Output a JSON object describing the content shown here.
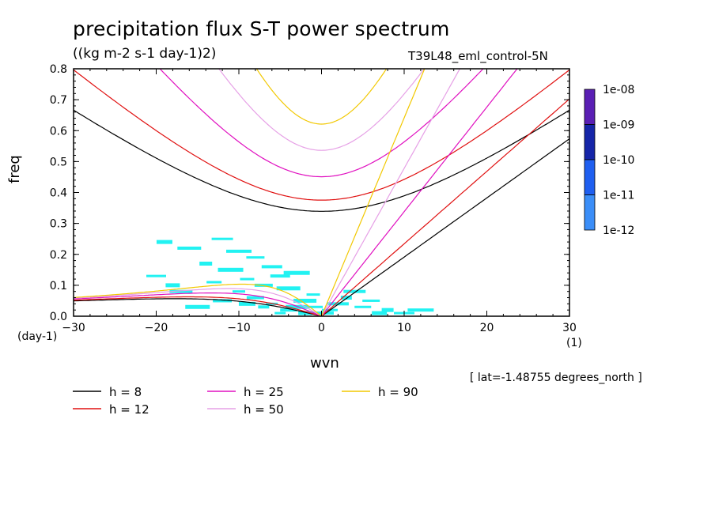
{
  "chart_data": {
    "type": "line",
    "title": "precipitation flux S-T power spectrum",
    "units": "((kg m-2 s-1 day-1)2)",
    "dataset": "T39L48_eml_control-5N",
    "xlabel": "wvn",
    "ylabel": "freq",
    "x_units": "(1)",
    "y_units": "(day-1)",
    "xlim": [
      -30,
      30
    ],
    "ylim": [
      0,
      0.8
    ],
    "x_ticks": [
      "-30",
      "-20",
      "-10",
      "0",
      "10",
      "20",
      "30"
    ],
    "y_ticks": [
      "0.0",
      "0.1",
      "0.2",
      "0.3",
      "0.4",
      "0.5",
      "0.6",
      "0.7",
      "0.8"
    ],
    "annotation": "[ lat=-1.48755 degrees_north ]",
    "colorbar": {
      "labels": [
        "1e-08",
        "1e-09",
        "1e-10",
        "1e-11",
        "1e-12"
      ],
      "colors": [
        "#5a1fb4",
        "#1525a8",
        "#1f5ff0",
        "#3b8ef8",
        "#22f2f2"
      ]
    },
    "series": [
      {
        "name": "h =  8",
        "label": "h =  8",
        "h": 8,
        "color": "#000000"
      },
      {
        "name": "h = 12",
        "label": "h = 12",
        "h": 12,
        "color": "#e01010"
      },
      {
        "name": "h = 25",
        "label": "h = 25",
        "h": 25,
        "color": "#e010c0"
      },
      {
        "name": "h = 50",
        "label": "h = 50",
        "h": 50,
        "color": "#e6a0e6"
      },
      {
        "name": "h = 90",
        "label": "h = 90",
        "h": 90,
        "color": "#f2c800"
      }
    ],
    "power_shading": {
      "color": "#22f2f2",
      "description_level": "1e-12 to 1e-11",
      "patches": [
        [
          -5,
          0.01
        ],
        [
          -4,
          0.02
        ],
        [
          -3,
          0.03
        ],
        [
          -6,
          0.04
        ],
        [
          -8,
          0.06
        ],
        [
          -2,
          0.05
        ],
        [
          -10,
          0.08
        ],
        [
          -7,
          0.1
        ],
        [
          -4,
          0.09
        ],
        [
          -1,
          0.07
        ],
        [
          -12,
          0.05
        ],
        [
          -15,
          0.03
        ],
        [
          -9,
          0.12
        ],
        [
          -5,
          0.13
        ],
        [
          -11,
          0.15
        ],
        [
          -13,
          0.11
        ],
        [
          -6,
          0.16
        ],
        [
          -3,
          0.14
        ],
        [
          1,
          0.02
        ],
        [
          2,
          0.04
        ],
        [
          3,
          0.06
        ],
        [
          5,
          0.03
        ],
        [
          4,
          0.08
        ],
        [
          8,
          0.02
        ],
        [
          6,
          0.05
        ],
        [
          -17,
          0.08
        ],
        [
          -14,
          0.17
        ],
        [
          -8,
          0.19
        ],
        [
          -16,
          0.22
        ],
        [
          -2,
          0.01
        ],
        [
          -1,
          0.03
        ],
        [
          0,
          0.01
        ],
        [
          -18,
          0.1
        ],
        [
          -20,
          0.13
        ],
        [
          -10,
          0.21
        ],
        [
          7,
          0.01
        ],
        [
          10,
          0.01
        ],
        [
          12,
          0.02
        ],
        [
          -19,
          0.24
        ],
        [
          -12,
          0.25
        ],
        [
          -7,
          0.03
        ],
        [
          -9,
          0.04
        ]
      ]
    }
  }
}
